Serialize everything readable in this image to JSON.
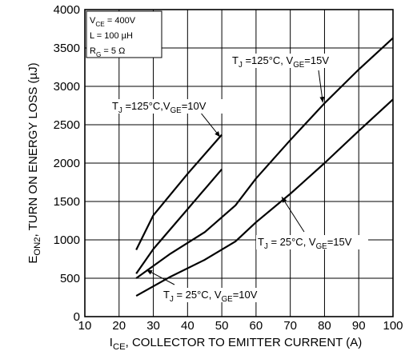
{
  "chart_data": {
    "type": "line",
    "title": "",
    "xlabel": {
      "main": "I",
      "sub": "CE",
      "rest": ", COLLECTOR TO EMITTER CURRENT (A)"
    },
    "ylabel": {
      "main": "E",
      "sub": "ON2",
      "rest": ", TURN ON ENERGY LOSS (µJ)"
    },
    "xlim": [
      10,
      100
    ],
    "ylim": [
      0,
      4000
    ],
    "xticks": [
      10,
      20,
      30,
      40,
      50,
      60,
      70,
      80,
      90,
      100
    ],
    "yticks": [
      0,
      500,
      1000,
      1500,
      2000,
      2500,
      3000,
      3500,
      4000
    ],
    "grid": true,
    "conditions": [
      {
        "main": "V",
        "sub": "CE",
        "rest": " = 400V"
      },
      {
        "main": "L = 100 µH",
        "sub": "",
        "rest": ""
      },
      {
        "main": "R",
        "sub": "G",
        "rest": " = 5 Ω"
      }
    ],
    "series": [
      {
        "label": [
          {
            "t": "T"
          },
          {
            "t": "J",
            "sub": true
          },
          {
            "t": " =125°C,V"
          },
          {
            "t": "GE",
            "sub": true
          },
          {
            "t": "=10V"
          }
        ],
        "x": [
          25,
          30,
          40,
          50
        ],
        "y": [
          870,
          1320,
          1860,
          2370
        ]
      },
      {
        "label": [
          {
            "t": "T"
          },
          {
            "t": "J",
            "sub": true
          },
          {
            "t": " = 25°C, V"
          },
          {
            "t": "GE",
            "sub": true
          },
          {
            "t": "=10V"
          }
        ],
        "x": [
          25,
          30,
          40,
          50
        ],
        "y": [
          560,
          880,
          1400,
          1920
        ]
      },
      {
        "label": [
          {
            "t": "T"
          },
          {
            "t": "J",
            "sub": true
          },
          {
            "t": " =125°C, V"
          },
          {
            "t": "GE",
            "sub": true
          },
          {
            "t": "=15V"
          }
        ],
        "x": [
          25,
          35,
          45,
          54,
          60,
          70,
          80,
          90,
          100
        ],
        "y": [
          500,
          820,
          1100,
          1450,
          1800,
          2300,
          2780,
          3220,
          3630
        ]
      },
      {
        "label": [
          {
            "t": "T"
          },
          {
            "t": "J",
            "sub": true
          },
          {
            "t": " = 25°C, V"
          },
          {
            "t": "GE",
            "sub": true
          },
          {
            "t": "=15V"
          }
        ],
        "x": [
          25,
          35,
          45,
          54,
          60,
          70,
          80,
          90,
          100
        ],
        "y": [
          270,
          520,
          740,
          980,
          1230,
          1600,
          2000,
          2420,
          2830
        ]
      }
    ]
  }
}
